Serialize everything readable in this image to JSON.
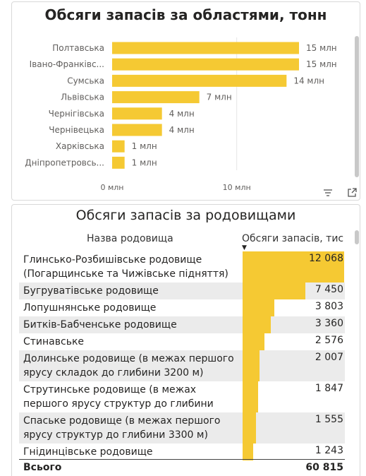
{
  "chart_data": {
    "type": "bar",
    "orientation": "horizontal",
    "title": "Обсяги запасів за областями, тонн",
    "categories": [
      "Полтавська",
      "Івано-Франківс...",
      "Сумська",
      "Львівська",
      "Чернігівська",
      "Чернівецька",
      "Харківська",
      "Дніпропетровсь..."
    ],
    "values": [
      15,
      15,
      14,
      7,
      4,
      4,
      1,
      1
    ],
    "data_labels": [
      "15 млн",
      "15 млн",
      "14 млн",
      "7 млн",
      "4 млн",
      "4 млн",
      "1 млн",
      "1 млн"
    ],
    "unit": "млн",
    "xlim": [
      0,
      15.5
    ],
    "xticks": [
      0,
      10
    ],
    "xtick_labels": [
      "0 млн",
      "10 млн"
    ],
    "bar_color": "#F5C933",
    "grid": true
  },
  "fields_table": {
    "title": "Обсяги запасів за родовищами",
    "col_name_header": "Назва родовища",
    "col_value_header": "Обсяги запасів, тис. т",
    "sort": "descending",
    "bar_color": "#F5C933",
    "max_value": 12068,
    "rows": [
      {
        "name": "Глинсько-Розбишівське родовище (Погарщинське та Чижівське підняття)",
        "value": 12068,
        "display": "12 068"
      },
      {
        "name": "Бугруватівське родовище",
        "value": 7450,
        "display": "7 450"
      },
      {
        "name": "Лопушнянське родовище",
        "value": 3803,
        "display": "3 803"
      },
      {
        "name": "Битків-Бабченське родовище",
        "value": 3360,
        "display": "3 360"
      },
      {
        "name": "Стинавське",
        "value": 2576,
        "display": "2 576"
      },
      {
        "name": "Долинське родовище (в межах першого ярусу складок до глибини 3200 м)",
        "value": 2007,
        "display": "2 007"
      },
      {
        "name": "Струтинське родовище (в межах першого ярусу структур до глибини 2700 м)",
        "value": 1847,
        "display": "1 847"
      },
      {
        "name": "Спаське родовище (в межах першого ярусу структур до глибини 3300 м)",
        "value": 1555,
        "display": "1 555"
      },
      {
        "name": "Гнідинцівське родовище",
        "value": 1243,
        "display": "1 243"
      }
    ],
    "total_label": "Всього",
    "total_value": "60 815"
  }
}
